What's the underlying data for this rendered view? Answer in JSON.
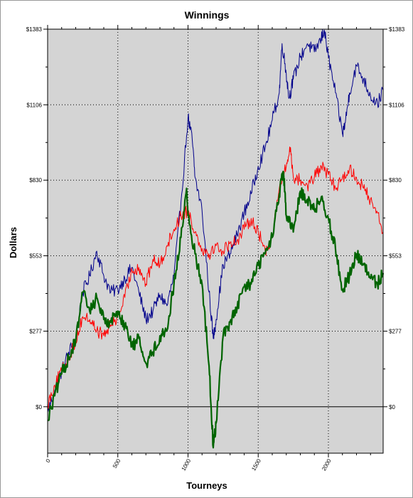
{
  "chart_data": {
    "type": "line",
    "title": "Winnings",
    "xlabel": "Tourneys",
    "ylabel": "Dollars",
    "xlim": [
      0,
      2390
    ],
    "ylim": [
      -170,
      1383
    ],
    "x_ticks": [
      0,
      500,
      1000,
      1500,
      2000
    ],
    "x_tick_labels": [
      "0",
      "500",
      "1000",
      "1500",
      "2000"
    ],
    "y_ticks": [
      0,
      277,
      553,
      830,
      1106,
      1383
    ],
    "y_tick_labels": [
      "$0",
      "$277",
      "$553",
      "$830",
      "$1106",
      "$1383"
    ],
    "grid": true,
    "colors": {
      "plot_background": "#d4d4d4",
      "blue_series": "#00008b",
      "red_series": "#ff0000",
      "green_series": "#006400"
    },
    "series": [
      {
        "color": "#00008b",
        "x": [
          0,
          50,
          100,
          150,
          200,
          250,
          300,
          350,
          400,
          450,
          500,
          550,
          600,
          650,
          700,
          750,
          800,
          850,
          900,
          950,
          1000,
          1030,
          1050,
          1100,
          1150,
          1180,
          1200,
          1250,
          1300,
          1350,
          1400,
          1450,
          1500,
          1550,
          1600,
          1650,
          1670,
          1700,
          1720,
          1750,
          1800,
          1850,
          1900,
          1950,
          1970,
          2000,
          2050,
          2100,
          2120,
          2150,
          2200,
          2250,
          2300,
          2350,
          2390
        ],
        "y": [
          -20,
          60,
          130,
          200,
          250,
          420,
          480,
          570,
          480,
          420,
          430,
          470,
          510,
          420,
          320,
          350,
          410,
          370,
          480,
          750,
          1060,
          980,
          840,
          720,
          420,
          250,
          320,
          520,
          560,
          630,
          710,
          780,
          880,
          950,
          1050,
          1150,
          1330,
          1220,
          1130,
          1200,
          1280,
          1330,
          1300,
          1350,
          1380,
          1280,
          1150,
          1000,
          1040,
          1150,
          1250,
          1200,
          1140,
          1110,
          1160
        ]
      },
      {
        "color": "#ff0000",
        "x": [
          0,
          50,
          100,
          150,
          200,
          250,
          300,
          350,
          400,
          450,
          500,
          550,
          600,
          650,
          700,
          750,
          800,
          850,
          900,
          950,
          1000,
          1050,
          1100,
          1150,
          1200,
          1250,
          1300,
          1350,
          1400,
          1450,
          1500,
          1550,
          1600,
          1650,
          1700,
          1730,
          1750,
          1800,
          1850,
          1900,
          1950,
          2000,
          2050,
          2100,
          2150,
          2200,
          2250,
          2300,
          2350,
          2390
        ],
        "y": [
          10,
          80,
          130,
          180,
          240,
          330,
          320,
          280,
          260,
          300,
          330,
          400,
          500,
          510,
          450,
          540,
          520,
          590,
          650,
          700,
          720,
          640,
          580,
          560,
          590,
          570,
          600,
          610,
          650,
          690,
          640,
          570,
          620,
          800,
          880,
          950,
          840,
          830,
          810,
          840,
          880,
          850,
          800,
          840,
          870,
          840,
          800,
          760,
          710,
          640
        ]
      },
      {
        "color": "#006400",
        "x": [
          0,
          50,
          100,
          150,
          200,
          250,
          300,
          350,
          400,
          450,
          500,
          550,
          600,
          650,
          700,
          750,
          800,
          850,
          900,
          950,
          990,
          1000,
          1050,
          1100,
          1150,
          1180,
          1200,
          1250,
          1300,
          1350,
          1400,
          1450,
          1500,
          1550,
          1600,
          1650,
          1680,
          1700,
          1750,
          1800,
          1850,
          1900,
          1950,
          2000,
          2050,
          2100,
          2150,
          2200,
          2250,
          2300,
          2350,
          2390
        ],
        "y": [
          -50,
          40,
          120,
          180,
          240,
          420,
          350,
          400,
          320,
          310,
          350,
          300,
          220,
          250,
          160,
          200,
          260,
          280,
          450,
          620,
          800,
          700,
          560,
          450,
          150,
          -150,
          -60,
          260,
          310,
          360,
          440,
          450,
          520,
          560,
          620,
          780,
          860,
          700,
          640,
          790,
          760,
          720,
          770,
          690,
          580,
          430,
          480,
          560,
          520,
          470,
          450,
          490
        ]
      }
    ]
  }
}
